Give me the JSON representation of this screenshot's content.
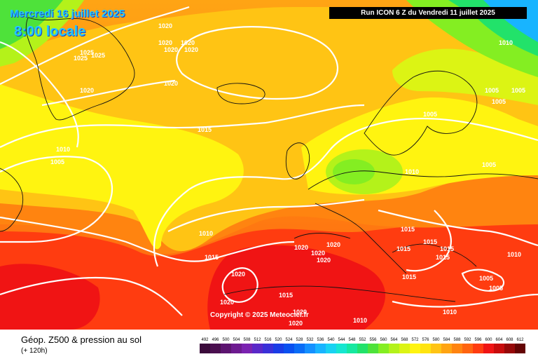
{
  "header": {
    "date": "Mercredi 16 juillet 2025",
    "time": "8:00 locale",
    "run": "Run ICON 6 Z du Vendredi 11 juillet 2025"
  },
  "copyright": "Copyright © 2025 Meteociel.fr",
  "footer": {
    "title": "Géop. Z500 & pression au sol",
    "subtitle": "(+ 120h)"
  },
  "isobar_labels": [
    "1020",
    "1020",
    "1020",
    "1020",
    "1020",
    "1025",
    "1025",
    "1025",
    "1020",
    "1020",
    "1015",
    "1010",
    "1005",
    "1010",
    "1015",
    "1020",
    "1020",
    "1020",
    "1020",
    "1020",
    "1020",
    "1015",
    "1020",
    "1020",
    "1010",
    "1010",
    "1005",
    "1005",
    "1005",
    "1005",
    "1005",
    "1010",
    "1015",
    "1015",
    "1015",
    "1015",
    "1015",
    "1015",
    "1010",
    "1005",
    "1005",
    "1010"
  ],
  "scale": {
    "labels": [
      "492",
      "496",
      "500",
      "504",
      "508",
      "512",
      "516",
      "520",
      "524",
      "528",
      "532",
      "536",
      "540",
      "544",
      "548",
      "552",
      "556",
      "560",
      "564",
      "568",
      "572",
      "576",
      "580",
      "584",
      "588",
      "592",
      "596",
      "600",
      "604",
      "608",
      "612"
    ],
    "colors": [
      "#3a0a3a",
      "#4a0f4f",
      "#5c1470",
      "#6d1a90",
      "#7a22b0",
      "#5a28c8",
      "#3a30d8",
      "#1a3ce6",
      "#0a50f0",
      "#0a6cf6",
      "#1490ff",
      "#18b4ff",
      "#18d2f2",
      "#16e6d0",
      "#16e8a0",
      "#22e26a",
      "#4ee23a",
      "#84ee22",
      "#b4f21a",
      "#dcf414",
      "#fff410",
      "#ffe410",
      "#ffc414",
      "#ffa412",
      "#ff8410",
      "#ff6410",
      "#ff3c10",
      "#f01414",
      "#c80c0c",
      "#960808",
      "#640404"
    ]
  }
}
